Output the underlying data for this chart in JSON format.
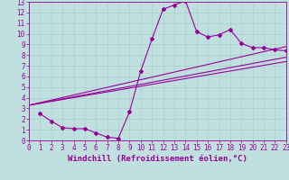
{
  "xlabel": "Windchill (Refroidissement éolien,°C)",
  "xlim": [
    0,
    23
  ],
  "ylim": [
    0,
    13
  ],
  "xticks": [
    0,
    1,
    2,
    3,
    4,
    5,
    6,
    7,
    8,
    9,
    10,
    11,
    12,
    13,
    14,
    15,
    16,
    17,
    18,
    19,
    20,
    21,
    22,
    23
  ],
  "yticks": [
    0,
    1,
    2,
    3,
    4,
    5,
    6,
    7,
    8,
    9,
    10,
    11,
    12,
    13
  ],
  "background_color": "#c0e0e0",
  "line_color": "#990099",
  "grid_color": "#a8d0d0",
  "line1_x": [
    1,
    2,
    3,
    4,
    5,
    6,
    7,
    8,
    9,
    10,
    11,
    12,
    13,
    14,
    15,
    16,
    17,
    18,
    19,
    20,
    21,
    22,
    23
  ],
  "line1_y": [
    2.5,
    1.8,
    1.2,
    1.1,
    1.1,
    0.7,
    0.3,
    0.2,
    2.7,
    6.5,
    9.5,
    12.3,
    12.7,
    13.1,
    10.2,
    9.7,
    9.9,
    10.4,
    9.1,
    8.7,
    8.7,
    8.5,
    8.4
  ],
  "line2_x": [
    0,
    23
  ],
  "line2_y": [
    3.3,
    8.8
  ],
  "line3_x": [
    0,
    23
  ],
  "line3_y": [
    3.3,
    7.8
  ],
  "line4_x": [
    0,
    23
  ],
  "line4_y": [
    3.3,
    7.4
  ],
  "tick_fontsize": 5.5,
  "label_fontsize": 6.5
}
